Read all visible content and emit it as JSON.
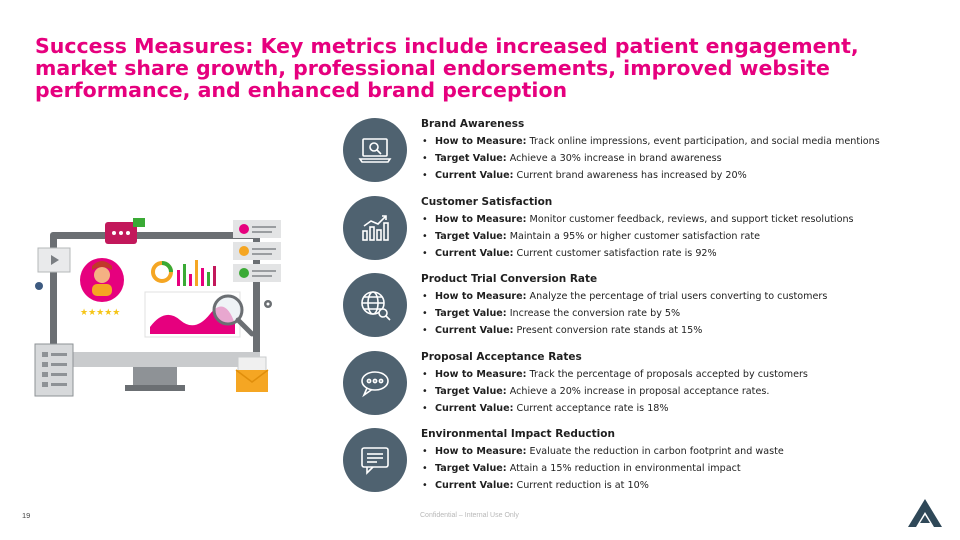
{
  "title": "Success Measures: Key metrics include increased patient engagement, market share growth, professional endorsements, improved website performance, and enhanced brand perception",
  "metrics": [
    {
      "icon": "laptop-search-icon",
      "heading": "Brand Awareness",
      "how_label": "How to Measure:",
      "how": "Track online impressions, event participation, and social media mentions",
      "target_label": "Target Value:",
      "target": "Achieve a 30% increase in brand awareness",
      "current_label": "Current Value:",
      "current": "Current brand awareness has increased by 20%"
    },
    {
      "icon": "bar-chart-growth-icon",
      "heading": "Customer Satisfaction",
      "how_label": "How to Measure:",
      "how": "Monitor customer feedback, reviews, and support ticket resolutions",
      "target_label": "Target Value:",
      "target": "Maintain a 95% or higher customer satisfaction rate",
      "current_label": "Current Value:",
      "current": "Current customer satisfaction rate is 92%"
    },
    {
      "icon": "globe-search-icon",
      "heading": "Product Trial Conversion Rate",
      "how_label": "How to Measure:",
      "how": "Analyze the percentage of trial users converting to customers",
      "target_label": "Target Value:",
      "target": "Increase the conversion rate by 5%",
      "current_label": "Current Value:",
      "current": "Present conversion rate stands at 15%"
    },
    {
      "icon": "chat-bubble-dots-icon",
      "heading": "Proposal Acceptance Rates",
      "how_label": "How to Measure:",
      "how": "Track the percentage of proposals accepted by customers",
      "target_label": "Target Value:",
      "target": "Achieve a 20% increase in proposal acceptance rates.",
      "current_label": "Current Value:",
      "current": "Current acceptance rate is 18%"
    },
    {
      "icon": "message-lines-icon",
      "heading": "Environmental Impact Reduction",
      "how_label": "How to Measure:",
      "how": "Evaluate the reduction in carbon footprint and waste",
      "target_label": "Target Value:",
      "target": "Attain a 15% reduction in environmental impact",
      "current_label": "Current Value:",
      "current": "Current reduction is at 10%"
    }
  ],
  "page_number": "19",
  "footer": "Confidential – Internal Use Only",
  "colors": {
    "title": "#e6007e",
    "icon_circle": "#4f6270",
    "logo": "#2f4858"
  }
}
